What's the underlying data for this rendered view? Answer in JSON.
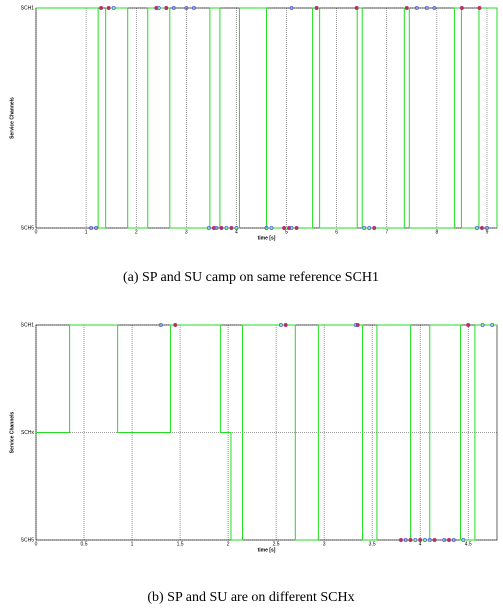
{
  "chart_data": [
    {
      "type": "line",
      "caption": "(a) SP and SU camp on same reference SCH1",
      "x_label": "time [s]",
      "y_label": "Service Channels",
      "xlim": [
        0,
        9.2
      ],
      "xticks": [
        0,
        1,
        2,
        3,
        4,
        5,
        6,
        7,
        8,
        9
      ],
      "ylim": [
        5,
        1
      ],
      "yticks": [
        {
          "value": 1,
          "label": "SCH1"
        },
        {
          "value": 5,
          "label": "SCH5"
        }
      ],
      "grid": true,
      "series": [
        {
          "style": "step",
          "color": "#22dd22",
          "x": [
            0,
            1.24,
            1.39,
            1.83,
            2.23,
            2.67,
            3.47,
            3.67,
            4.06,
            4.6,
            5.52,
            5.66,
            6.41,
            6.51,
            7.35,
            7.45,
            8.35,
            8.49,
            8.84,
            9.2
          ],
          "values": [
            1,
            5,
            1,
            5,
            1,
            5,
            1,
            5,
            1,
            5,
            1,
            5,
            1,
            5,
            1,
            5,
            1,
            5,
            1,
            5
          ]
        },
        {
          "style": "dot",
          "color": "#b8306a",
          "x": [
            1.3,
            1.45,
            2.4,
            2.6,
            5.6,
            6.4,
            7.4,
            8.5,
            8.85,
            3.55,
            3.7,
            3.9,
            4.95,
            5.05,
            5.2,
            6.75,
            8.9
          ],
          "values": [
            1,
            1,
            1,
            1,
            1,
            1,
            1,
            1,
            1,
            5,
            5,
            5,
            5,
            5,
            5,
            5,
            5
          ]
        },
        {
          "style": "ring",
          "color": "#4a5ee8",
          "x": [
            1.55,
            2.45,
            2.75,
            3.0,
            3.15,
            5.1,
            7.6,
            7.8,
            7.95,
            1.1,
            1.2,
            3.45,
            3.6,
            3.8,
            4.0,
            4.6,
            4.7,
            5.1,
            6.55,
            6.65,
            8.8,
            9.0
          ],
          "values": [
            1,
            1,
            1,
            1,
            1,
            1,
            1,
            1,
            1,
            5,
            5,
            5,
            5,
            5,
            5,
            5,
            5,
            5,
            5,
            5,
            5,
            5
          ]
        }
      ]
    },
    {
      "type": "line",
      "caption": "(b) SP and SU are on different SCHx",
      "x_label": "time [s]",
      "y_label": "Service Channels",
      "xlim": [
        0,
        4.8
      ],
      "xticks": [
        0,
        0.5,
        1,
        1.5,
        2,
        2.5,
        3,
        3.5,
        4,
        4.5
      ],
      "ylim": [
        5,
        1
      ],
      "yticks": [
        {
          "value": 1,
          "label": "SCH1"
        },
        {
          "value": 3,
          "label": "SCHx"
        },
        {
          "value": 5,
          "label": "SCH5"
        }
      ],
      "grid": true,
      "series": [
        {
          "style": "step",
          "color": "#22dd22",
          "x": [
            0,
            0.35,
            0.85,
            1.4,
            1.92,
            2.03,
            2.15,
            2.7,
            2.94,
            3.4,
            3.55,
            3.9,
            4.1,
            4.42,
            4.57,
            4.8
          ],
          "values": [
            3,
            1,
            3,
            1,
            3,
            5,
            1,
            5,
            1,
            5,
            1,
            5,
            1,
            5,
            1,
            1
          ]
        },
        {
          "style": "dot",
          "color": "#b8306a",
          "x": [
            1.45,
            2.6,
            3.35,
            4.5,
            3.8,
            3.9,
            4.0,
            4.15,
            4.3
          ],
          "values": [
            1,
            1,
            1,
            1,
            5,
            5,
            5,
            5,
            5
          ]
        },
        {
          "style": "ring",
          "color": "#4a5ee8",
          "x": [
            1.3,
            2.55,
            3.33,
            4.65,
            4.75,
            3.85,
            3.95,
            4.05,
            4.1,
            4.25,
            4.35,
            4.45
          ],
          "values": [
            1,
            1,
            1,
            1,
            1,
            5,
            5,
            5,
            5,
            5,
            5,
            5
          ]
        }
      ]
    }
  ]
}
